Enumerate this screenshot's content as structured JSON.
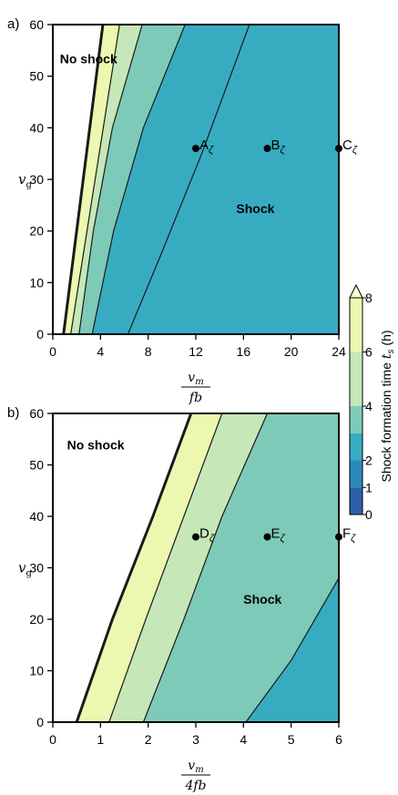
{
  "chart_data": [
    {
      "type": "contour",
      "panel_label": "a)",
      "xlabel_num": "v",
      "xlabel_num_sub": "m",
      "xlabel_den": "fb",
      "ylabel": "v",
      "ylabel_sub": "g",
      "xlim": [
        0,
        24
      ],
      "ylim": [
        0,
        60
      ],
      "xticks": [
        0,
        4,
        8,
        12,
        16,
        20,
        24
      ],
      "yticks": [
        0,
        10,
        20,
        30,
        40,
        50,
        60
      ],
      "region_labels": [
        {
          "text": "No shock",
          "x": 3.0,
          "y": 52.5
        },
        {
          "text": "Shock",
          "x": 17.0,
          "y": 23.5
        }
      ],
      "points": [
        {
          "label": "A",
          "sub": "ζ",
          "x": 12,
          "y": 36
        },
        {
          "label": "B",
          "sub": "ζ",
          "x": 18,
          "y": 36
        },
        {
          "label": "C",
          "sub": "ζ",
          "x": 24,
          "y": 36
        }
      ],
      "contours": [
        {
          "level": 0,
          "points": [
            [
              0.9,
              0
            ],
            [
              4.2,
              60
            ]
          ]
        },
        {
          "level": 6,
          "points": [
            [
              1.5,
              0
            ],
            [
              5.6,
              60
            ]
          ]
        },
        {
          "level": 4,
          "points": [
            [
              2.2,
              0
            ],
            [
              3.4,
              20
            ],
            [
              5.0,
              40
            ],
            [
              7.5,
              60
            ]
          ]
        },
        {
          "level": 3,
          "points": [
            [
              3.3,
              0
            ],
            [
              5.1,
              20
            ],
            [
              7.6,
              40
            ],
            [
              11.1,
              60
            ]
          ]
        },
        {
          "level": 2,
          "points": [
            [
              6.3,
              0
            ],
            [
              9.0,
              15
            ],
            [
              12.5,
              35
            ],
            [
              16.5,
              60
            ]
          ]
        }
      ]
    },
    {
      "type": "contour",
      "panel_label": "b)",
      "xlabel_num": "v",
      "xlabel_num_sub": "m",
      "xlabel_den": "4fb",
      "ylabel": "v",
      "ylabel_sub": "g",
      "xlim": [
        0,
        6
      ],
      "ylim": [
        0,
        60
      ],
      "xticks": [
        0,
        1,
        2,
        3,
        4,
        5,
        6
      ],
      "yticks": [
        0,
        10,
        20,
        30,
        40,
        50,
        60
      ],
      "region_labels": [
        {
          "text": "No shock",
          "x": 0.9,
          "y": 53
        },
        {
          "text": "Shock",
          "x": 4.4,
          "y": 23
        }
      ],
      "points": [
        {
          "label": "D",
          "sub": "ζ",
          "x": 3.0,
          "y": 36
        },
        {
          "label": "E",
          "sub": "ζ",
          "x": 4.5,
          "y": 36
        },
        {
          "label": "F",
          "sub": "ζ",
          "x": 6.0,
          "y": 36
        }
      ],
      "contours": [
        {
          "level": 0,
          "points": [
            [
              0.5,
              0
            ],
            [
              1.25,
              20
            ],
            [
              2.1,
              40
            ],
            [
              2.9,
              60
            ]
          ]
        },
        {
          "level": 6,
          "points": [
            [
              1.18,
              0
            ],
            [
              1.95,
              20
            ],
            [
              2.75,
              40
            ],
            [
              3.55,
              60
            ]
          ]
        },
        {
          "level": 4,
          "points": [
            [
              1.9,
              0
            ],
            [
              2.75,
              20
            ],
            [
              3.55,
              40
            ],
            [
              4.5,
              60
            ]
          ]
        },
        {
          "level": 3,
          "points": [
            [
              4.05,
              0
            ],
            [
              5.0,
              12
            ],
            [
              6.0,
              28
            ]
          ]
        }
      ]
    }
  ],
  "colorbar": {
    "label": "Shock formation time ",
    "label_sym": "t",
    "label_sub": "s",
    "label_unit": " (h)",
    "ticks": [
      0,
      1,
      2,
      4,
      6,
      8
    ],
    "tick_labels": [
      "0",
      "1",
      "2",
      "4",
      "6",
      "8"
    ],
    "bands": [
      {
        "from": 0,
        "to": 1,
        "color": "#2c5ea8"
      },
      {
        "from": 1,
        "to": 2,
        "color": "#2a88b9"
      },
      {
        "from": 2,
        "to": 3,
        "color": "#37acc1"
      },
      {
        "from": 3,
        "to": 4,
        "color": "#7ecab8"
      },
      {
        "from": 4,
        "to": 6,
        "color": "#c6e7b8"
      },
      {
        "from": 6,
        "to": 8,
        "color": "#ecf8b0"
      }
    ],
    "extend_color": "#ffffd6"
  },
  "colors": {
    "level_0": "#ffffff",
    "level_6": "#ecf8b0",
    "level_4": "#c6e7b8",
    "level_3": "#7ecab8",
    "level_2": "#37acc1",
    "base_a": "#37acc1",
    "base_b": "#37acc1"
  }
}
